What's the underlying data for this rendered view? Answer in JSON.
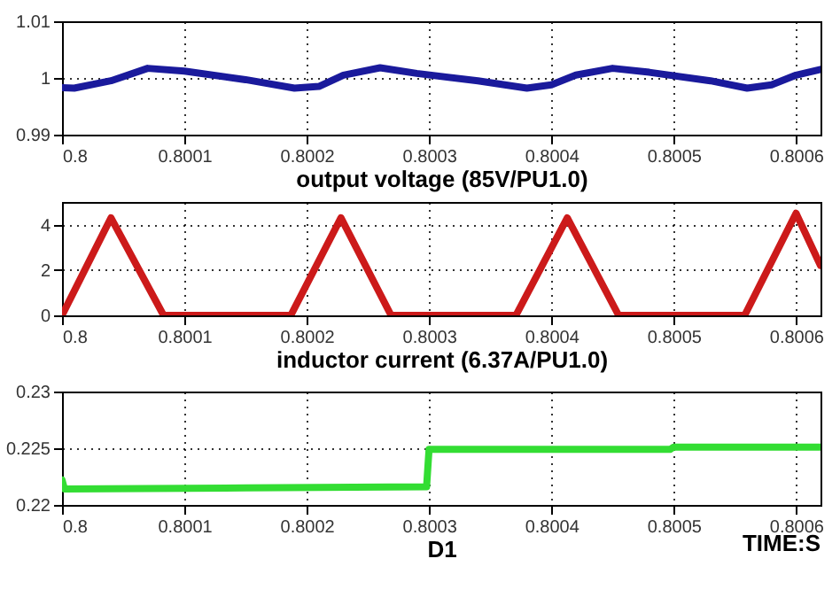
{
  "chart_data": [
    {
      "type": "line",
      "xlabel": "output voltage (85V/PU1.0)",
      "xlim": [
        0.8,
        0.80062
      ],
      "xticks": [
        0.8,
        0.8001,
        0.8002,
        0.8003,
        0.8004,
        0.8005,
        0.8006
      ],
      "ylim": [
        0.99,
        1.01
      ],
      "yticks": [
        0.99,
        1,
        1.01
      ],
      "grid": true,
      "series": [
        {
          "color": "#1a1a9c",
          "x": [
            0.8,
            0.80001,
            0.80004,
            0.80007,
            0.8001,
            0.80015,
            0.80019,
            0.80021,
            0.80023,
            0.80026,
            0.80029,
            0.80034,
            0.80038,
            0.8004,
            0.80042,
            0.80045,
            0.80048,
            0.80053,
            0.80056,
            0.80058,
            0.8006,
            0.80062
          ],
          "values": [
            0.9983,
            0.9982,
            0.9995,
            1.0017,
            1.0012,
            0.9997,
            0.9982,
            0.9985,
            1.0005,
            1.0018,
            1.0008,
            0.9995,
            0.9982,
            0.9988,
            1.0005,
            1.0017,
            1.001,
            0.9995,
            0.9982,
            0.9988,
            1.0005,
            1.0015
          ]
        }
      ]
    },
    {
      "type": "line",
      "xlabel": "inductor current (6.37A/PU1.0)",
      "xlim": [
        0.8,
        0.80062
      ],
      "xticks": [
        0.8,
        0.8001,
        0.8002,
        0.8003,
        0.8004,
        0.8005,
        0.8006
      ],
      "ylim": [
        0,
        5
      ],
      "yticks": [
        0,
        2,
        4
      ],
      "grid": true,
      "series": [
        {
          "color": "#cc1a1a",
          "x": [
            0.8,
            0.80004,
            0.800083,
            0.800187,
            0.800228,
            0.800269,
            0.800371,
            0.800413,
            0.800455,
            0.800558,
            0.8006,
            0.80062
          ],
          "values": [
            0,
            4.3,
            0,
            0,
            4.3,
            0,
            0,
            4.3,
            0,
            0,
            4.5,
            2.2
          ]
        }
      ]
    },
    {
      "type": "line",
      "xlabel": "D1",
      "annotations": [
        "TIME:S"
      ],
      "xlim": [
        0.8,
        0.80062
      ],
      "xticks": [
        0.8,
        0.8001,
        0.8002,
        0.8003,
        0.8004,
        0.8005,
        0.8006
      ],
      "ylim": [
        0.22,
        0.23
      ],
      "yticks": [
        0.22,
        0.225,
        0.23
      ],
      "grid": true,
      "series": [
        {
          "color": "#33dd33",
          "x": [
            0.8,
            0.800002,
            0.80015,
            0.800298,
            0.8003,
            0.8004,
            0.800497,
            0.8005,
            0.80062
          ],
          "values": [
            0.2222,
            0.2214,
            0.2215,
            0.2216,
            0.2249,
            0.2249,
            0.2249,
            0.2251,
            0.2251
          ]
        }
      ]
    }
  ]
}
